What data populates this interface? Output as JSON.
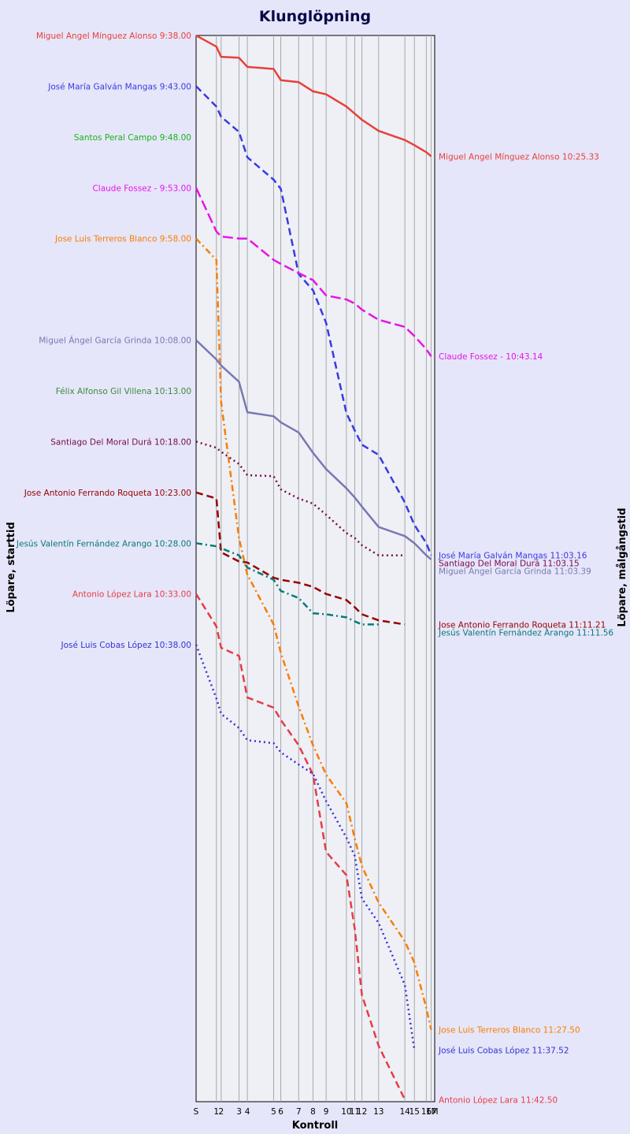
{
  "chart_data": {
    "type": "line",
    "title": "Klunglöpning",
    "xlabel": "Kontroll",
    "ylabel_left": "Löpare, starttid",
    "ylabel_right": "Löpare, målgångstid",
    "x_ticks": [
      "S",
      "1",
      "2",
      "3",
      "4",
      "5",
      "6",
      "7",
      "8",
      "9",
      "10",
      "11",
      "12",
      "13",
      "14",
      "15",
      "16",
      "17",
      "M"
    ],
    "x_positions": [
      0,
      1.7,
      2.1,
      3.6,
      4.3,
      6.5,
      7.1,
      8.6,
      9.8,
      10.9,
      12.6,
      13.3,
      13.9,
      15.3,
      17.5,
      18.3,
      19.3,
      19.7,
      20.0
    ],
    "time_range": [
      "9:38",
      "11:43"
    ],
    "grid": true,
    "series": [
      {
        "name": "Miguel Angel Mínguez Alonso",
        "start_label": "Miguel Angel Mínguez Alonso 9:38.00",
        "end_label": "Miguel Angel Mínguez Alonso 10:25.33",
        "color": "#e8403a",
        "dash": "solid",
        "values": [
          0,
          1.1,
          2.1,
          2.2,
          3.1,
          3.3,
          4.4,
          4.6,
          5.5,
          5.8,
          7.0,
          7.7,
          8.3,
          9.4,
          10.3,
          10.8,
          11.5,
          11.9
        ]
      },
      {
        "name": "José María Galván Mangas",
        "start_label": "José María Galván Mangas 9:43.00",
        "end_label": "José María Galván Mangas 11:03.16",
        "color": "#3a3ae0",
        "dash": "dash",
        "values": [
          5,
          7.0,
          8.0,
          9.5,
          12.0,
          14.2,
          15.1,
          23.5,
          25.1,
          28.3,
          37.2,
          38.9,
          40.3,
          41.3,
          46.0,
          48.2,
          50.0,
          51.2
        ]
      },
      {
        "name": "Santos Peral Campo",
        "start_label": "Santos Peral Campo 9:48.00",
        "end_label": "",
        "color": "#18b418",
        "dash": "solid",
        "values": []
      },
      {
        "name": "Claude Fossez -",
        "start_label": "Claude Fossez - 9:53.00",
        "end_label": "Claude Fossez - 10:43.14",
        "color": "#e614e6",
        "dash": "longdash",
        "values": [
          15,
          19.3,
          19.8,
          20.0,
          20.0,
          22.1,
          22.5,
          23.4,
          24.1,
          25.6,
          26.0,
          26.4,
          27.0,
          28.0,
          28.7,
          29.6,
          30.9,
          31.6
        ]
      },
      {
        "name": "Jose Luis Terreros Blanco",
        "start_label": "Jose Luis Terreros Blanco 9:58.00",
        "end_label": "Jose Luis Terreros Blanco 11:27.50",
        "color": "#fa7d00",
        "dash": "dashdot",
        "values": [
          20,
          22.1,
          36.1,
          49.5,
          53.1,
          58.0,
          60.8,
          66.1,
          69.9,
          72.8,
          75.6,
          79.1,
          81.8,
          85.4,
          89.2,
          91.3,
          95.8,
          97.9
        ]
      },
      {
        "name": "Miguel Ángel García Grinda",
        "start_label": "Miguel Ángel García Grinda 10:08.00",
        "end_label": "Miguel Ángel García Grinda 11:03.39",
        "color": "#7878b4",
        "dash": "solid",
        "values": [
          30,
          31.9,
          32.5,
          34.1,
          37.1,
          37.5,
          38.1,
          39.1,
          41.1,
          42.7,
          44.6,
          45.5,
          46.4,
          48.4,
          49.3,
          50.0,
          51.2,
          51.6
        ]
      },
      {
        "name": "Félix Alfonso Gil Villena",
        "start_label": "Félix Alfonso Gil Villena 10:13.00",
        "end_label": "",
        "color": "#3a8c3a",
        "dash": "solid",
        "values": []
      },
      {
        "name": "Santiago Del Moral Durá",
        "start_label": "Santiago Del Moral Durá 10:18.00",
        "end_label": "Santiago Del Moral Durá 11:03.15",
        "color": "#780a50",
        "dash": "dot",
        "values": [
          40,
          40.6,
          41.0,
          42.2,
          43.3,
          43.4,
          44.7,
          45.6,
          46.1,
          47.2,
          49.0,
          49.5,
          50.2,
          51.2,
          51.2
        ]
      },
      {
        "name": "Jose Antonio Ferrando Roqueta",
        "start_label": "Jose Antonio Ferrando Roqueta 10:23.00",
        "end_label": "Jose Antonio Ferrando Roqueta 11:11.21",
        "color": "#960000",
        "dash": "dash",
        "values": [
          45,
          45.6,
          50.9,
          51.8,
          51.9,
          53.4,
          53.6,
          53.9,
          54.3,
          55.0,
          55.6,
          56.3,
          57.0,
          57.6,
          58.0
        ]
      },
      {
        "name": "Jesús Valentín Fernández Arango",
        "start_label": "Jesús Valentín Fernández Arango 10:28.00",
        "end_label": "Jesús Valentín Fernández Arango 11:11.56",
        "color": "#0a7878",
        "dash": "dashdot",
        "values": [
          50,
          50.3,
          50.5,
          51.2,
          52.4,
          53.6,
          54.7,
          55.4,
          56.9,
          57.0,
          57.3,
          57.7,
          58.0,
          58.0
        ]
      },
      {
        "name": "Antonio López Lara",
        "start_label": "Antonio López Lara 10:33.00",
        "end_label": "Antonio López Lara 11:42.50",
        "color": "#e63c46",
        "dash": "dash",
        "values": [
          55,
          58.2,
          60.3,
          61.1,
          65.2,
          66.2,
          67.4,
          69.9,
          72.8,
          80.4,
          82.7,
          88.0,
          94.5,
          99.5,
          104.8
        ]
      },
      {
        "name": "José Luis Cobas López",
        "start_label": "José Luis Cobas López 10:38.00",
        "end_label": "José Luis Cobas López 11:37.52",
        "color": "#3232d2",
        "dash": "dot",
        "values": [
          60,
          65.3,
          66.8,
          68.2,
          69.4,
          69.7,
          70.6,
          71.8,
          72.7,
          75.4,
          79.0,
          80.8,
          85.0,
          87.4,
          93.5,
          99.9
        ]
      }
    ]
  }
}
